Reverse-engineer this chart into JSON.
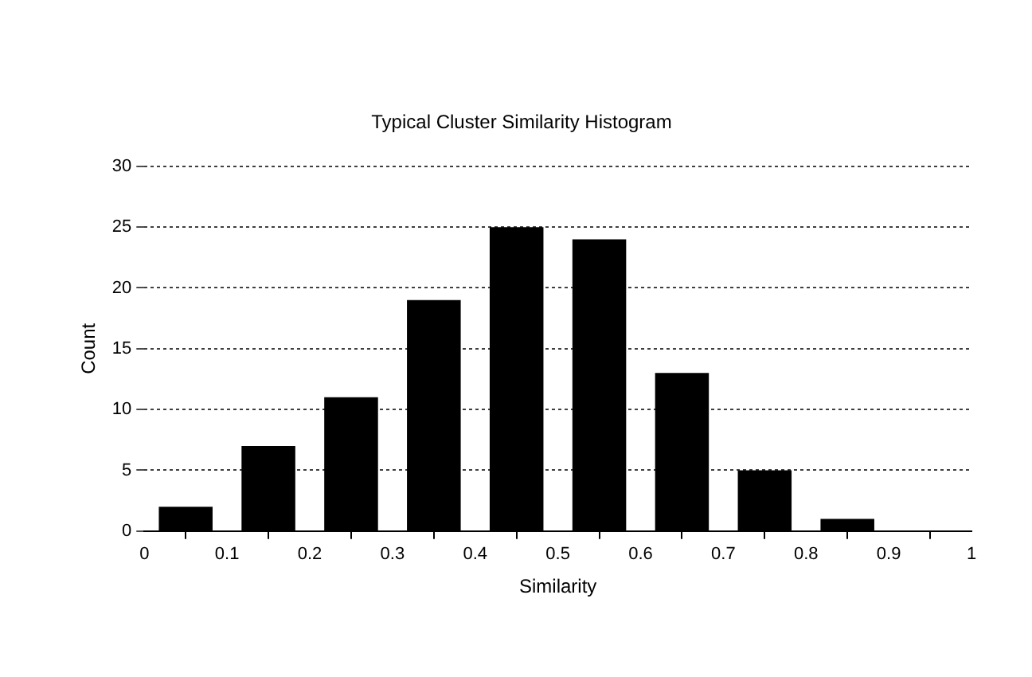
{
  "chart_data": {
    "type": "histogram",
    "title": "Typical Cluster Similarity Histogram",
    "xlabel": "Similarity",
    "ylabel": "Count",
    "bins": [
      0,
      0.1,
      0.2,
      0.3,
      0.4,
      0.5,
      0.6,
      0.7,
      0.8,
      0.9
    ],
    "values": [
      2,
      7,
      11,
      19,
      25,
      24,
      13,
      5,
      1
    ],
    "color": "#000000",
    "xlim": [
      0,
      1
    ],
    "xticks": [
      0,
      0.1,
      0.2,
      0.3,
      0.4,
      0.5,
      0.6,
      0.7,
      0.8,
      0.9,
      1
    ],
    "ylim": [
      0,
      30
    ],
    "yticks": [
      0,
      5,
      10,
      15,
      20,
      25,
      30
    ],
    "grid": "y"
  }
}
